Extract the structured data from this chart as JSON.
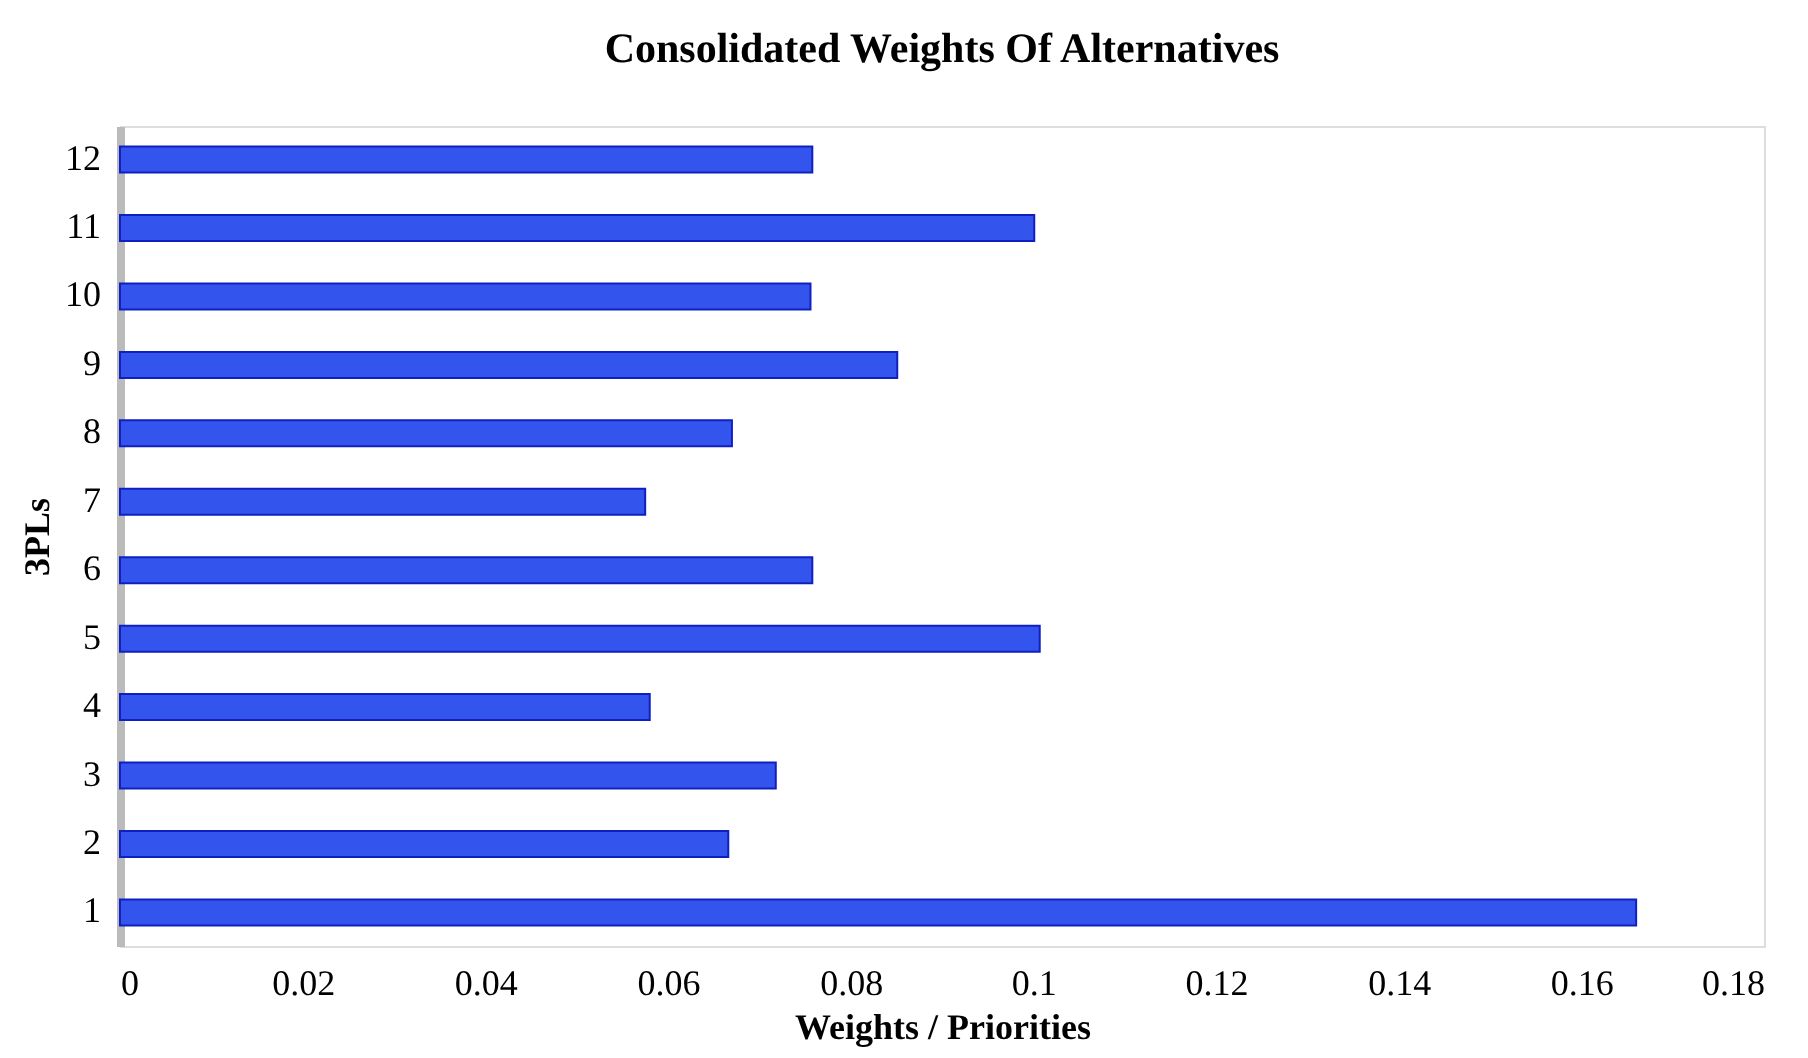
{
  "chart_data": {
    "type": "bar",
    "orientation": "horizontal",
    "title": "Consolidated Weights Of Alternatives",
    "xlabel": "Weights / Priorities",
    "ylabel": "3PLs",
    "categories": [
      "12",
      "11",
      "10",
      "9",
      "8",
      "7",
      "6",
      "5",
      "4",
      "3",
      "2",
      "1"
    ],
    "values": [
      0.0758,
      0.1001,
      0.0756,
      0.0851,
      0.067,
      0.0575,
      0.0758,
      0.1007,
      0.058,
      0.0718,
      0.0666,
      0.166
    ],
    "color": "#3355ee",
    "xlim": [
      0,
      0.18
    ],
    "xticks": [
      0,
      0.02,
      0.04,
      0.06,
      0.08,
      0.1,
      0.12,
      0.14,
      0.16,
      0.18
    ],
    "grid": false
  }
}
